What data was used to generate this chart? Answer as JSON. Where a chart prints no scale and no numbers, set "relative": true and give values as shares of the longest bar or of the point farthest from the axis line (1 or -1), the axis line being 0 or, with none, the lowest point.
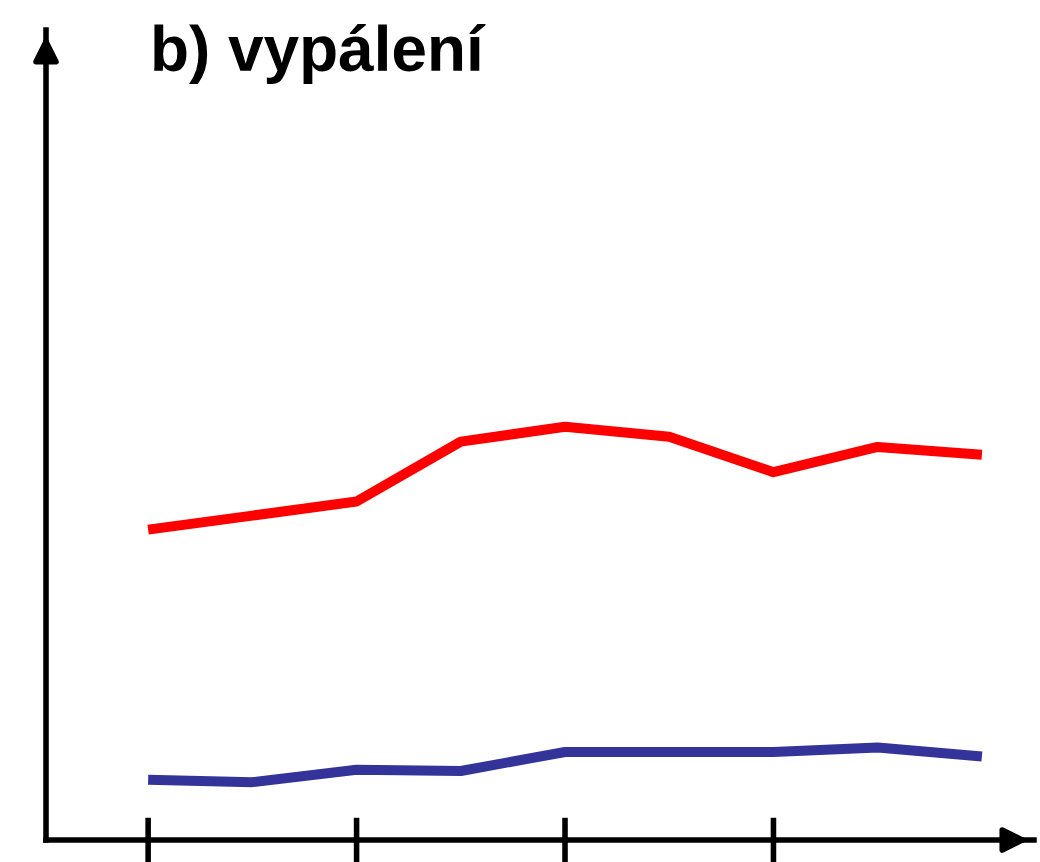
{
  "chart_data": {
    "type": "line",
    "title": "b) vypálení",
    "relative": true,
    "categories": [
      null,
      null,
      null,
      null,
      null,
      null,
      null,
      null,
      null
    ],
    "series": [
      {
        "color": "#ff0000",
        "values": [
          0.751,
          0.785,
          0.819,
          0.964,
          1,
          0.976,
          0.89,
          0.951,
          0.932
        ]
      },
      {
        "color": "#333399",
        "values": [
          0.146,
          0.14,
          0.17,
          0.167,
          0.213,
          0.213,
          0.213,
          0.224,
          0.202
        ]
      }
    ],
    "grid": false,
    "legend": false,
    "marker": "none",
    "line_style": "solid"
  }
}
